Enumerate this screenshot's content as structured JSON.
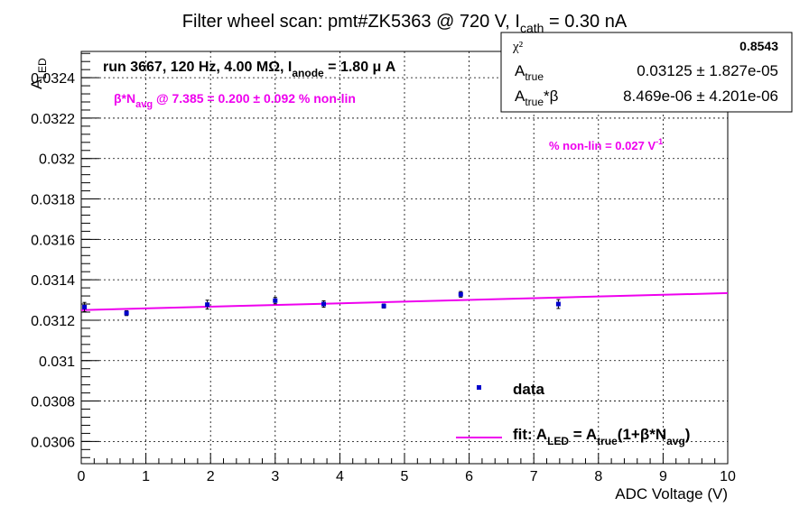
{
  "chart_data": {
    "type": "scatter",
    "title_prefix": "Filter wheel scan: pmt#ZK5363 @   720 V, I",
    "title_sub": "cath",
    "title_suffix": " = 0.30 nA",
    "xlabel": "ADC Voltage (V)",
    "ylabel_main": "A",
    "ylabel_sub": "LED",
    "xlim": [
      0,
      10
    ],
    "ylim": [
      0.03049,
      0.03253
    ],
    "x_ticks": [
      "0",
      "1",
      "2",
      "3",
      "4",
      "5",
      "6",
      "7",
      "8",
      "9",
      "10"
    ],
    "y_ticks": [
      "0.0306",
      "0.0308",
      "0.031",
      "0.0312",
      "0.0314",
      "0.0316",
      "0.0318",
      "0.032",
      "0.0322",
      "0.0324"
    ],
    "grid": true,
    "series": [
      {
        "name": "data",
        "color": "#0000cc",
        "x": [
          0.05,
          0.7,
          1.95,
          3.0,
          3.75,
          4.68,
          5.87,
          7.38
        ],
        "y": [
          0.031265,
          0.031235,
          0.031277,
          0.031297,
          0.03128,
          0.03127,
          0.031328,
          0.03128
        ],
        "yerr": [
          2.3e-05,
          1.2e-05,
          2.2e-05,
          1.6e-05,
          1.6e-05,
          1e-05,
          1.4e-05,
          2.2e-05
        ]
      }
    ],
    "fit": {
      "name": "fit",
      "color": "#ee00ee",
      "x": [
        0,
        10
      ],
      "y": [
        0.03125,
        0.031334
      ]
    },
    "annotations": {
      "run_prefix": "run 3667, 120 Hz, 4.00 MΩ, I",
      "run_sub": "anode",
      "run_suffix": " = 1.80 μ A",
      "beta_prefix": "β*N",
      "beta_sub": "avg",
      "beta_suffix": " @ 7.385 = 0.200 ± 0.092 % non-lin",
      "nonlin_main": "% non-lin = 0.027 V",
      "nonlin_sup": "-1"
    },
    "stats_box": {
      "chi2_label": "χ²",
      "chi2_value": "0.8543",
      "atrue_label": "A",
      "atrue_sub": "true",
      "atrue_value": "0.03125 ± 1.827e-05",
      "atb_label": "A",
      "atb_sub": "true",
      "atb_suffix": "*β",
      "atb_value": "8.469e-06 ± 4.201e-06"
    },
    "legend": {
      "data_label": "data",
      "fit_prefix": "fit: A",
      "fit_sub1": "LED",
      "fit_mid": " = A",
      "fit_sub2": "true",
      "fit_mid2": "(1+β*N",
      "fit_sub3": "avg",
      "fit_end": ")"
    }
  }
}
